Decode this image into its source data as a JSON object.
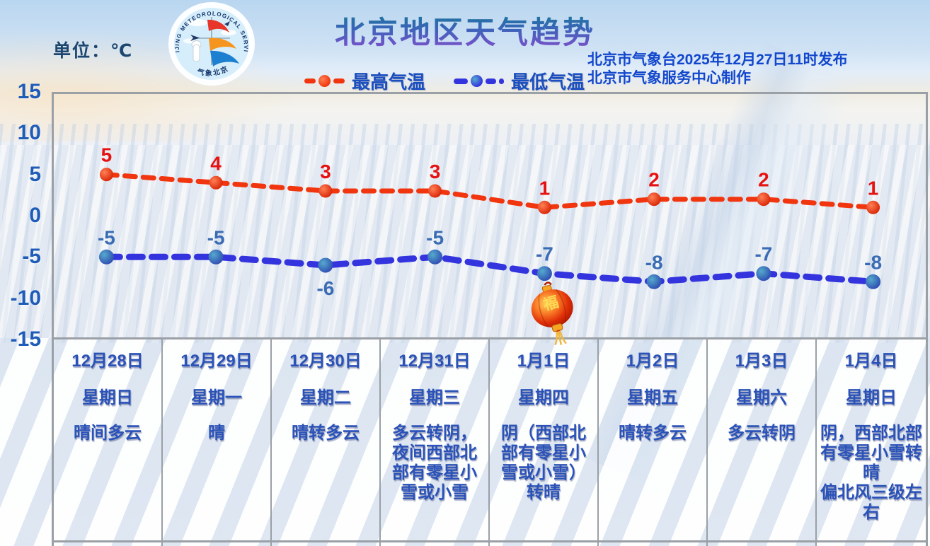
{
  "header": {
    "unit_label": "单位：℃",
    "title": "北京地区天气趋势",
    "issued_line1": "北京市气象台2025年12月27日11时发布",
    "issued_line2": "北京市气象服务中心制作",
    "logo": {
      "arc_text": "BEIJING METEOROLOGICAL SERVICE",
      "bottom_text": "气象北京"
    }
  },
  "legend": {
    "items": [
      {
        "label": "最高气温",
        "color": "#f1350e"
      },
      {
        "label": "最低气温",
        "color": "#3434df"
      }
    ]
  },
  "chart_data": {
    "type": "line",
    "title": "北京地区天气趋势",
    "x": [
      "12月28日",
      "12月29日",
      "12月30日",
      "12月31日",
      "1月1日",
      "1月2日",
      "1月3日",
      "1月4日"
    ],
    "series": [
      {
        "name": "最高气温",
        "values": [
          5,
          4,
          3,
          3,
          1,
          2,
          2,
          1
        ],
        "line_color": "#f1350e",
        "label_color": "#e61212",
        "point_inner": "#ff8055",
        "point_outer": "#d61e00"
      },
      {
        "name": "最低气温",
        "values": [
          -5,
          -5,
          -6,
          -5,
          -7,
          -8,
          -7,
          -8
        ],
        "line_color": "#3434df",
        "label_color": "#3a6cb4",
        "point_inner": "#55aacc",
        "point_outer": "#2b46b0"
      }
    ],
    "ylim": [
      -15,
      15
    ],
    "yticks": [
      15,
      10,
      5,
      0,
      -5,
      -10,
      -15
    ],
    "ylabel": "℃",
    "grid": false,
    "legend_position": "top-center",
    "label_below_point": {
      "series": 1,
      "index": 2
    }
  },
  "table": {
    "columns": [
      {
        "date": "12月28日",
        "weekday": "星期日",
        "weather": "晴间多云"
      },
      {
        "date": "12月29日",
        "weekday": "星期一",
        "weather": "晴"
      },
      {
        "date": "12月30日",
        "weekday": "星期二",
        "weather": "晴转多云"
      },
      {
        "date": "12月31日",
        "weekday": "星期三",
        "weather": "多云转阴，夜间西部北部有零星小雪或小雪"
      },
      {
        "date": "1月1日",
        "weekday": "星期四",
        "weather": "阴（西部北部有零星小雪或小雪）转晴"
      },
      {
        "date": "1月2日",
        "weekday": "星期五",
        "weather": "晴转多云"
      },
      {
        "date": "1月3日",
        "weekday": "星期六",
        "weather": "多云转阴"
      },
      {
        "date": "1月4日",
        "weekday": "星期日",
        "weather": "阴，西部北部有零星小雪转晴\n偏北风三级左右"
      }
    ]
  },
  "decorations": {
    "lantern_char": "福"
  },
  "colors": {
    "frame_border": "#9aa0a6",
    "axis_label": "#1e5cb8",
    "table_text": "#2a52b8",
    "issue_text": "#1247cd",
    "title_gradient_top": "#0e7d90",
    "title_gradient_bottom": "#8a4ccd"
  }
}
